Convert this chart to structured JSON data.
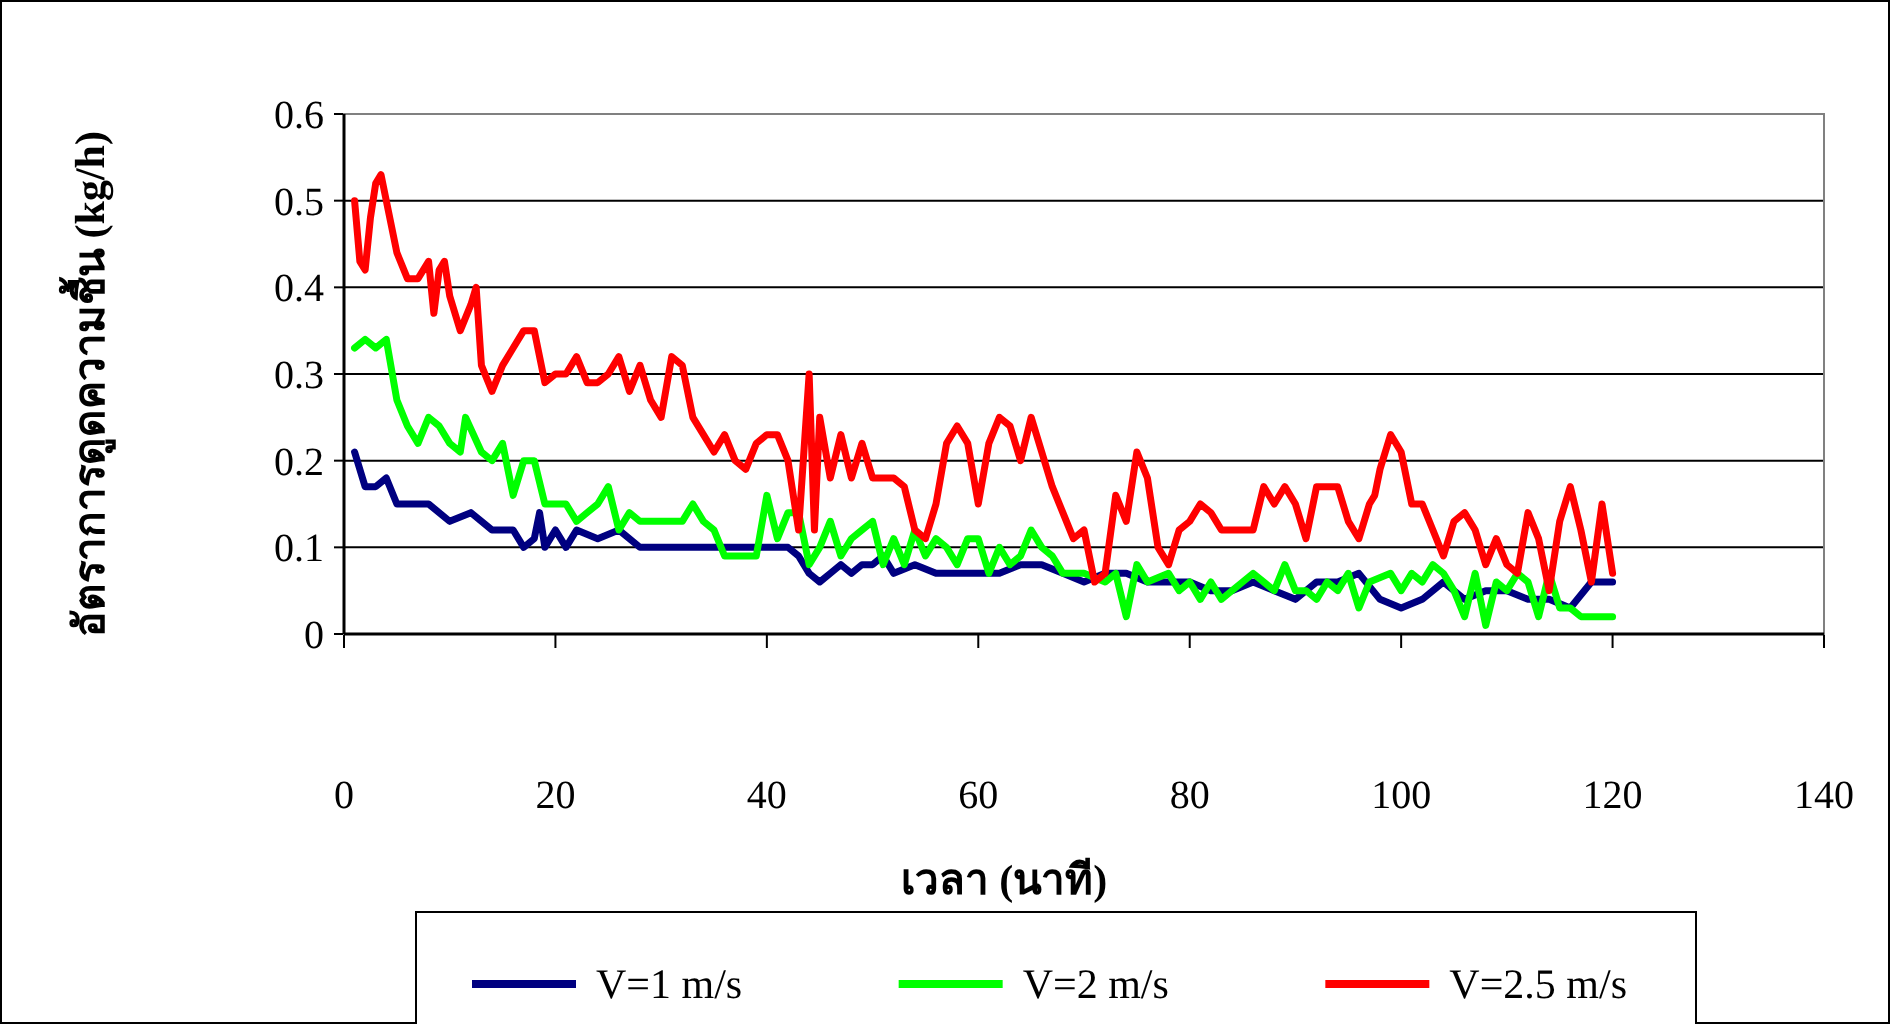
{
  "chart_data": {
    "type": "line",
    "xlabel": "เวลา (นาที)",
    "ylabel": "อัตราการดูดความชื้น (kg/h)",
    "xlim": [
      0,
      140
    ],
    "xticks": [
      0,
      20,
      40,
      60,
      80,
      100,
      120,
      140
    ],
    "ylim": [
      0,
      0.6
    ],
    "yticks": [
      0,
      0.1,
      0.2,
      0.3,
      0.4,
      0.5,
      0.6
    ],
    "grid": "y",
    "legend": "bottom",
    "marker": "none",
    "line_style": "solid",
    "series": [
      {
        "name": "V=1 m/s",
        "color": "#000080",
        "x": [
          1,
          2,
          3,
          4,
          5,
          6,
          8,
          10,
          12,
          14,
          16,
          17,
          18,
          18.5,
          19,
          20,
          21,
          22,
          24,
          26,
          28,
          30,
          32,
          34,
          36,
          38,
          40,
          42,
          43,
          44,
          45,
          46,
          47,
          48,
          49,
          50,
          51,
          52,
          54,
          56,
          58,
          60,
          62,
          64,
          66,
          68,
          70,
          72,
          74,
          76,
          78,
          80,
          82,
          84,
          86,
          88,
          90,
          92,
          94,
          96,
          98,
          100,
          102,
          104,
          106,
          108,
          110,
          112,
          114,
          116,
          118,
          120
        ],
        "values": [
          0.21,
          0.17,
          0.17,
          0.18,
          0.15,
          0.15,
          0.15,
          0.13,
          0.14,
          0.12,
          0.12,
          0.1,
          0.11,
          0.14,
          0.1,
          0.12,
          0.1,
          0.12,
          0.11,
          0.12,
          0.1,
          0.1,
          0.1,
          0.1,
          0.1,
          0.1,
          0.1,
          0.1,
          0.09,
          0.07,
          0.06,
          0.07,
          0.08,
          0.07,
          0.08,
          0.08,
          0.09,
          0.07,
          0.08,
          0.07,
          0.07,
          0.07,
          0.07,
          0.08,
          0.08,
          0.07,
          0.06,
          0.07,
          0.07,
          0.06,
          0.06,
          0.06,
          0.05,
          0.05,
          0.06,
          0.05,
          0.04,
          0.06,
          0.06,
          0.07,
          0.04,
          0.03,
          0.04,
          0.06,
          0.04,
          0.05,
          0.05,
          0.04,
          0.04,
          0.03,
          0.06,
          0.06
        ]
      },
      {
        "name": "V=2 m/s",
        "color": "#00ff00",
        "x": [
          1,
          2,
          3,
          4,
          5,
          6,
          7,
          8,
          9,
          10,
          11,
          11.5,
          13,
          14,
          15,
          16,
          17,
          18,
          19,
          20,
          21,
          22,
          23,
          24,
          25,
          26,
          27,
          28,
          30,
          32,
          33,
          34,
          35,
          36,
          37,
          39,
          40,
          41,
          42,
          43,
          44,
          45,
          46,
          47,
          48,
          49,
          50,
          51,
          52,
          53,
          54,
          55,
          56,
          57,
          58,
          59,
          60,
          61,
          62,
          63,
          64,
          65,
          66,
          67,
          68,
          70,
          72,
          73,
          74,
          75,
          76,
          78,
          79,
          80,
          81,
          82,
          83,
          84,
          86,
          87,
          88,
          89,
          90,
          91,
          92,
          93,
          94,
          95,
          96,
          97,
          99,
          100,
          101,
          102,
          103,
          104,
          105,
          106,
          107,
          108,
          109,
          110,
          111,
          112,
          113,
          114,
          115,
          116,
          117,
          118,
          120
        ],
        "values": [
          0.33,
          0.34,
          0.33,
          0.34,
          0.27,
          0.24,
          0.22,
          0.25,
          0.24,
          0.22,
          0.21,
          0.25,
          0.21,
          0.2,
          0.22,
          0.16,
          0.2,
          0.2,
          0.15,
          0.15,
          0.15,
          0.13,
          0.14,
          0.15,
          0.17,
          0.12,
          0.14,
          0.13,
          0.13,
          0.13,
          0.15,
          0.13,
          0.12,
          0.09,
          0.09,
          0.09,
          0.16,
          0.11,
          0.14,
          0.14,
          0.08,
          0.1,
          0.13,
          0.09,
          0.11,
          0.12,
          0.13,
          0.08,
          0.11,
          0.08,
          0.12,
          0.09,
          0.11,
          0.1,
          0.08,
          0.11,
          0.11,
          0.07,
          0.1,
          0.08,
          0.09,
          0.12,
          0.1,
          0.09,
          0.07,
          0.07,
          0.06,
          0.07,
          0.02,
          0.08,
          0.06,
          0.07,
          0.05,
          0.06,
          0.04,
          0.06,
          0.04,
          0.05,
          0.07,
          0.06,
          0.05,
          0.08,
          0.05,
          0.05,
          0.04,
          0.06,
          0.05,
          0.07,
          0.03,
          0.06,
          0.07,
          0.05,
          0.07,
          0.06,
          0.08,
          0.07,
          0.05,
          0.02,
          0.07,
          0.01,
          0.06,
          0.05,
          0.07,
          0.06,
          0.02,
          0.07,
          0.03,
          0.03,
          0.02,
          0.02,
          0.02
        ]
      },
      {
        "name": "V=2.5 m/s",
        "color": "#ff0000",
        "x": [
          1,
          1.5,
          2,
          2.5,
          3,
          3.5,
          4,
          5,
          6,
          7,
          8,
          8.5,
          9,
          9.5,
          10,
          11,
          12,
          12.5,
          13,
          14,
          15,
          16,
          17,
          18,
          19,
          20,
          21,
          22,
          23,
          24,
          25,
          26,
          27,
          28,
          29,
          30,
          31,
          32,
          33,
          34,
          35,
          36,
          37,
          38,
          39,
          40,
          41,
          42,
          43,
          44,
          44.5,
          45,
          46,
          47,
          48,
          49,
          50,
          52,
          53,
          54,
          55,
          56,
          57,
          58,
          59,
          60,
          61,
          62,
          63,
          64,
          65,
          66,
          67,
          68,
          69,
          70,
          71,
          72,
          73,
          74,
          75,
          76,
          77,
          78,
          79,
          80,
          81,
          82,
          83,
          84,
          85,
          86,
          87,
          88,
          89,
          90,
          91,
          92,
          93,
          94,
          95,
          96,
          97,
          97.5,
          98,
          99,
          100,
          101,
          102,
          103,
          104,
          105,
          106,
          107,
          108,
          109,
          110,
          111,
          112,
          113,
          114,
          115,
          116,
          117,
          118,
          119,
          120
        ],
        "values": [
          0.5,
          0.43,
          0.42,
          0.48,
          0.52,
          0.53,
          0.5,
          0.44,
          0.41,
          0.41,
          0.43,
          0.37,
          0.42,
          0.43,
          0.39,
          0.35,
          0.38,
          0.4,
          0.31,
          0.28,
          0.31,
          0.33,
          0.35,
          0.35,
          0.29,
          0.3,
          0.3,
          0.32,
          0.29,
          0.29,
          0.3,
          0.32,
          0.28,
          0.31,
          0.27,
          0.25,
          0.32,
          0.31,
          0.25,
          0.23,
          0.21,
          0.23,
          0.2,
          0.19,
          0.22,
          0.23,
          0.23,
          0.2,
          0.12,
          0.3,
          0.12,
          0.25,
          0.18,
          0.23,
          0.18,
          0.22,
          0.18,
          0.18,
          0.17,
          0.12,
          0.11,
          0.15,
          0.22,
          0.24,
          0.22,
          0.15,
          0.22,
          0.25,
          0.24,
          0.2,
          0.25,
          0.21,
          0.17,
          0.14,
          0.11,
          0.12,
          0.06,
          0.07,
          0.16,
          0.13,
          0.21,
          0.18,
          0.1,
          0.08,
          0.12,
          0.13,
          0.15,
          0.14,
          0.12,
          0.12,
          0.12,
          0.12,
          0.17,
          0.15,
          0.17,
          0.15,
          0.11,
          0.17,
          0.17,
          0.17,
          0.13,
          0.11,
          0.15,
          0.16,
          0.19,
          0.23,
          0.21,
          0.15,
          0.15,
          0.12,
          0.09,
          0.13,
          0.14,
          0.12,
          0.08,
          0.11,
          0.08,
          0.07,
          0.14,
          0.11,
          0.05,
          0.13,
          0.17,
          0.12,
          0.06,
          0.15,
          0.07
        ]
      }
    ]
  }
}
